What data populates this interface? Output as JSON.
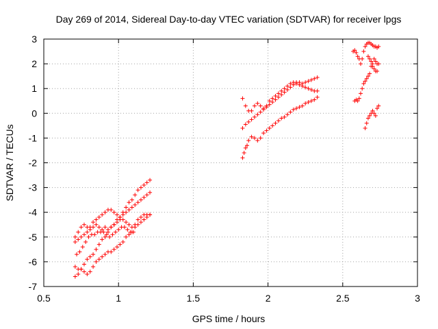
{
  "chart_data": {
    "type": "scatter",
    "title": "Day 269 of 2014, Sidereal Day-to-day VTEC variation (SDTVAR) for receiver lpgs",
    "xlabel": "GPS time / hours",
    "ylabel": "SDTVAR / TECUs",
    "xlim": [
      0.5,
      3
    ],
    "ylim": [
      -7,
      3
    ],
    "xticks": [
      0.5,
      1,
      1.5,
      2,
      2.5,
      3
    ],
    "yticks": [
      -7,
      -6,
      -5,
      -4,
      -3,
      -2,
      -1,
      0,
      1,
      2,
      3
    ],
    "xtick_labels": [
      "0.5",
      "1",
      "1.5",
      "2",
      "2.5",
      "3"
    ],
    "ytick_labels": [
      "-7",
      "-6",
      "-5",
      "-4",
      "-3",
      "-2",
      "-1",
      "0",
      "1",
      "2",
      "3"
    ],
    "grid": true,
    "marker": "+",
    "color": "#ff0000",
    "series": [
      {
        "values": [
          [
            0.71,
            -6.6
          ],
          [
            0.73,
            -6.5
          ],
          [
            0.75,
            -6.3
          ],
          [
            0.77,
            -6.1
          ],
          [
            0.79,
            -5.9
          ],
          [
            0.81,
            -5.8
          ],
          [
            0.83,
            -5.7
          ],
          [
            0.85,
            -5.5
          ],
          [
            0.87,
            -5.3
          ],
          [
            0.89,
            -5.1
          ],
          [
            0.91,
            -5.0
          ],
          [
            0.93,
            -4.8
          ],
          [
            0.95,
            -4.6
          ],
          [
            0.97,
            -4.5
          ],
          [
            0.99,
            -4.3
          ],
          [
            1.01,
            -4.2
          ],
          [
            1.03,
            -4.0
          ],
          [
            1.05,
            -3.8
          ],
          [
            1.07,
            -3.6
          ],
          [
            1.09,
            -3.5
          ],
          [
            1.11,
            -3.3
          ],
          [
            1.13,
            -3.1
          ],
          [
            1.15,
            -3.0
          ],
          [
            1.17,
            -2.9
          ],
          [
            1.19,
            -2.8
          ],
          [
            1.21,
            -2.7
          ]
        ]
      },
      {
        "values": [
          [
            0.71,
            -5.0
          ],
          [
            0.73,
            -4.8
          ],
          [
            0.75,
            -4.6
          ],
          [
            0.77,
            -4.5
          ],
          [
            0.79,
            -4.6
          ],
          [
            0.81,
            -4.7
          ],
          [
            0.83,
            -4.6
          ],
          [
            0.85,
            -4.5
          ],
          [
            0.87,
            -4.6
          ],
          [
            0.89,
            -4.7
          ],
          [
            0.91,
            -4.6
          ],
          [
            0.93,
            -4.7
          ],
          [
            0.95,
            -4.6
          ],
          [
            0.97,
            -4.5
          ],
          [
            0.99,
            -4.4
          ],
          [
            1.01,
            -4.3
          ],
          [
            1.03,
            -4.1
          ],
          [
            1.05,
            -4.0
          ],
          [
            1.07,
            -3.9
          ],
          [
            1.09,
            -3.8
          ],
          [
            1.11,
            -3.7
          ],
          [
            1.13,
            -3.6
          ],
          [
            1.15,
            -3.5
          ],
          [
            1.17,
            -3.4
          ],
          [
            1.19,
            -3.3
          ],
          [
            1.21,
            -3.2
          ]
        ]
      },
      {
        "values": [
          [
            0.71,
            -5.2
          ],
          [
            0.73,
            -5.1
          ],
          [
            0.75,
            -5.0
          ],
          [
            0.77,
            -4.9
          ],
          [
            0.79,
            -4.8
          ],
          [
            0.81,
            -4.6
          ],
          [
            0.83,
            -4.4
          ],
          [
            0.85,
            -4.3
          ],
          [
            0.87,
            -4.2
          ],
          [
            0.89,
            -4.1
          ],
          [
            0.91,
            -4.0
          ],
          [
            0.93,
            -3.9
          ],
          [
            0.95,
            -3.9
          ],
          [
            0.97,
            -4.0
          ],
          [
            0.99,
            -4.1
          ],
          [
            1.01,
            -4.2
          ],
          [
            1.03,
            -4.3
          ],
          [
            1.05,
            -4.4
          ],
          [
            1.07,
            -4.5
          ],
          [
            1.09,
            -4.6
          ],
          [
            1.11,
            -4.5
          ],
          [
            1.13,
            -4.3
          ],
          [
            1.15,
            -4.2
          ],
          [
            1.17,
            -4.1
          ],
          [
            1.19,
            -4.1
          ],
          [
            1.21,
            -4.1
          ]
        ]
      },
      {
        "values": [
          [
            0.71,
            -6.2
          ],
          [
            0.73,
            -6.3
          ],
          [
            0.75,
            -6.3
          ],
          [
            0.77,
            -6.4
          ],
          [
            0.79,
            -6.5
          ],
          [
            0.81,
            -6.4
          ],
          [
            0.83,
            -6.2
          ],
          [
            0.85,
            -6.0
          ],
          [
            0.87,
            -5.9
          ],
          [
            0.89,
            -5.8
          ],
          [
            0.91,
            -5.7
          ],
          [
            0.93,
            -5.6
          ],
          [
            0.95,
            -5.6
          ],
          [
            0.97,
            -5.5
          ],
          [
            0.99,
            -5.4
          ],
          [
            1.01,
            -5.3
          ],
          [
            1.03,
            -5.2
          ],
          [
            1.05,
            -5.0
          ],
          [
            1.07,
            -4.9
          ],
          [
            1.09,
            -4.8
          ],
          [
            1.11,
            -4.6
          ],
          [
            1.13,
            -4.5
          ],
          [
            1.15,
            -4.4
          ],
          [
            1.17,
            -4.3
          ],
          [
            1.19,
            -4.2
          ],
          [
            1.21,
            -4.1
          ]
        ]
      },
      {
        "values": [
          [
            0.72,
            -5.7
          ],
          [
            0.74,
            -5.6
          ],
          [
            0.76,
            -5.4
          ],
          [
            0.78,
            -5.2
          ],
          [
            0.8,
            -5.0
          ],
          [
            0.82,
            -4.9
          ],
          [
            0.84,
            -4.9
          ],
          [
            0.86,
            -4.8
          ],
          [
            0.88,
            -4.8
          ],
          [
            0.9,
            -4.8
          ],
          [
            0.92,
            -4.9
          ],
          [
            0.94,
            -5.0
          ],
          [
            0.96,
            -4.9
          ],
          [
            0.98,
            -4.8
          ],
          [
            1.0,
            -4.7
          ],
          [
            1.02,
            -4.6
          ],
          [
            1.04,
            -4.6
          ],
          [
            1.06,
            -4.7
          ],
          [
            1.08,
            -4.8
          ],
          [
            1.1,
            -4.8
          ]
        ]
      },
      {
        "values": [
          [
            1.83,
            0.6
          ],
          [
            1.85,
            0.3
          ],
          [
            1.87,
            0.1
          ],
          [
            1.89,
            0.1
          ],
          [
            1.91,
            0.3
          ],
          [
            1.93,
            0.4
          ],
          [
            1.95,
            0.3
          ],
          [
            1.97,
            0.2
          ],
          [
            1.99,
            0.3
          ],
          [
            2.01,
            0.5
          ],
          [
            2.03,
            0.6
          ],
          [
            2.05,
            0.7
          ],
          [
            2.07,
            0.8
          ],
          [
            2.09,
            0.9
          ],
          [
            2.11,
            1.0
          ],
          [
            2.13,
            1.1
          ],
          [
            2.15,
            1.2
          ],
          [
            2.17,
            1.25
          ],
          [
            2.19,
            1.2
          ],
          [
            2.21,
            1.15
          ],
          [
            2.23,
            1.1
          ],
          [
            2.25,
            1.05
          ],
          [
            2.27,
            1.0
          ],
          [
            2.29,
            0.95
          ],
          [
            2.31,
            0.9
          ],
          [
            2.33,
            0.9
          ]
        ]
      },
      {
        "values": [
          [
            1.83,
            -0.6
          ],
          [
            1.85,
            -0.45
          ],
          [
            1.87,
            -0.35
          ],
          [
            1.89,
            -0.25
          ],
          [
            1.91,
            -0.15
          ],
          [
            1.93,
            -0.05
          ],
          [
            1.95,
            0.05
          ],
          [
            1.97,
            0.15
          ],
          [
            1.99,
            0.25
          ],
          [
            2.01,
            0.35
          ],
          [
            2.03,
            0.45
          ],
          [
            2.05,
            0.55
          ],
          [
            2.07,
            0.65
          ],
          [
            2.09,
            0.75
          ],
          [
            2.11,
            0.85
          ],
          [
            2.13,
            0.95
          ],
          [
            2.15,
            1.05
          ],
          [
            2.17,
            1.15
          ],
          [
            2.19,
            1.25
          ],
          [
            2.21,
            1.25
          ],
          [
            2.23,
            1.2
          ],
          [
            2.25,
            1.25
          ],
          [
            2.27,
            1.3
          ],
          [
            2.29,
            1.35
          ],
          [
            2.31,
            1.4
          ],
          [
            2.33,
            1.45
          ]
        ]
      },
      {
        "values": [
          [
            1.83,
            -1.8
          ],
          [
            1.84,
            -1.6
          ],
          [
            1.85,
            -1.4
          ],
          [
            1.86,
            -1.3
          ],
          [
            1.87,
            -1.1
          ],
          [
            1.89,
            -0.95
          ],
          [
            1.91,
            -1.0
          ],
          [
            1.93,
            -1.1
          ],
          [
            1.95,
            -1.0
          ],
          [
            1.97,
            -0.8
          ],
          [
            1.99,
            -0.7
          ],
          [
            2.01,
            -0.6
          ],
          [
            2.03,
            -0.5
          ],
          [
            2.05,
            -0.4
          ],
          [
            2.07,
            -0.3
          ],
          [
            2.09,
            -0.2
          ],
          [
            2.11,
            -0.15
          ],
          [
            2.13,
            -0.05
          ],
          [
            2.15,
            0.05
          ],
          [
            2.17,
            0.15
          ],
          [
            2.19,
            0.2
          ],
          [
            2.21,
            0.25
          ],
          [
            2.23,
            0.3
          ],
          [
            2.25,
            0.4
          ],
          [
            2.27,
            0.45
          ],
          [
            2.29,
            0.5
          ],
          [
            2.31,
            0.55
          ],
          [
            2.33,
            0.65
          ]
        ]
      },
      {
        "values": [
          [
            2.57,
            2.5
          ],
          [
            2.58,
            2.55
          ],
          [
            2.59,
            2.45
          ],
          [
            2.6,
            2.3
          ],
          [
            2.61,
            2.2
          ],
          [
            2.62,
            2.0
          ],
          [
            2.63,
            2.2
          ],
          [
            2.64,
            2.5
          ],
          [
            2.65,
            2.7
          ],
          [
            2.66,
            2.8
          ],
          [
            2.67,
            2.85
          ],
          [
            2.68,
            2.85
          ],
          [
            2.69,
            2.8
          ],
          [
            2.7,
            2.75
          ],
          [
            2.71,
            2.7
          ],
          [
            2.72,
            2.7
          ],
          [
            2.73,
            2.65
          ],
          [
            2.74,
            2.7
          ]
        ]
      },
      {
        "values": [
          [
            2.58,
            0.5
          ],
          [
            2.59,
            0.55
          ],
          [
            2.6,
            0.5
          ],
          [
            2.61,
            0.6
          ],
          [
            2.62,
            0.8
          ],
          [
            2.63,
            1.0
          ],
          [
            2.64,
            1.2
          ],
          [
            2.65,
            1.3
          ],
          [
            2.66,
            1.4
          ],
          [
            2.67,
            1.5
          ],
          [
            2.68,
            1.6
          ],
          [
            2.69,
            1.9
          ],
          [
            2.7,
            2.0
          ],
          [
            2.71,
            2.2
          ],
          [
            2.72,
            2.1
          ],
          [
            2.73,
            2.0
          ],
          [
            2.74,
            2.0
          ]
        ]
      },
      {
        "values": [
          [
            2.65,
            -0.6
          ],
          [
            2.66,
            -0.4
          ],
          [
            2.67,
            -0.2
          ],
          [
            2.68,
            -0.1
          ],
          [
            2.69,
            0.0
          ],
          [
            2.7,
            0.1
          ],
          [
            2.71,
            0.0
          ],
          [
            2.72,
            -0.1
          ],
          [
            2.73,
            0.2
          ],
          [
            2.74,
            0.3
          ]
        ]
      },
      {
        "values": [
          [
            2.67,
            2.3
          ],
          [
            2.68,
            2.2
          ],
          [
            2.69,
            2.1
          ],
          [
            2.7,
            1.9
          ],
          [
            2.71,
            1.8
          ],
          [
            2.72,
            1.7
          ],
          [
            2.73,
            1.7
          ]
        ]
      }
    ]
  }
}
